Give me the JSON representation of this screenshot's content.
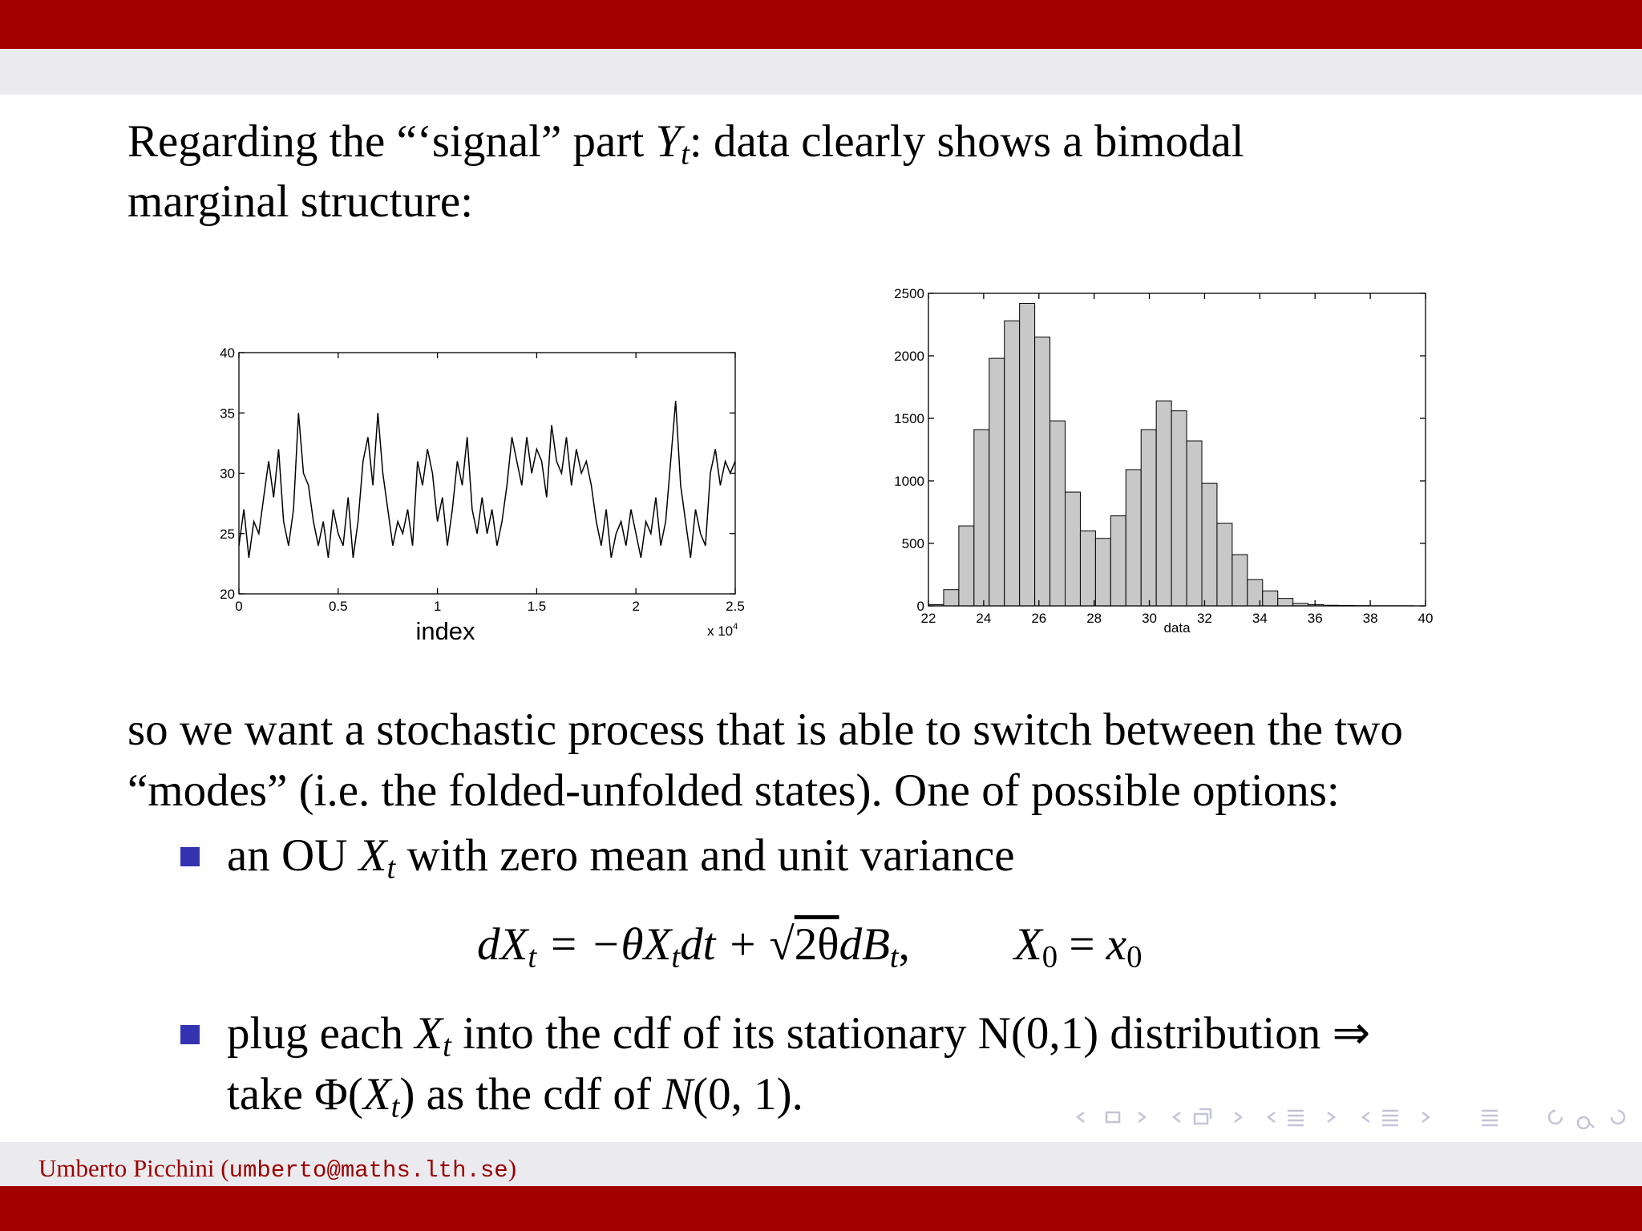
{
  "intro": {
    "line1": [
      "Regarding the “‘signal” part ",
      "Y",
      "t",
      ": data clearly shows a bimodal"
    ],
    "line2": "marginal structure:"
  },
  "body": {
    "line1": "so we want a stochastic process that is able to switch between the two",
    "line2": "“modes” (i.e. the folded-unfolded states). One of possible options:"
  },
  "bullet1": [
    "an OU ",
    "X",
    "t",
    " with zero mean and unit variance"
  ],
  "equation": [
    "dX",
    "t",
    " = −θX",
    "t",
    "dt + ",
    "√",
    "2θ",
    "dB",
    "t",
    ",",
    "X",
    "0",
    " = ",
    "x",
    "0"
  ],
  "bullet2": {
    "line1": [
      "plug each ",
      "X",
      "t",
      " into the cdf of its stationary N(0,1) distribution ⇒"
    ],
    "line2": [
      "take Φ(",
      "X",
      "t",
      ") as the cdf of ",
      "N",
      "(0, 1)."
    ]
  },
  "footer": [
    "Umberto Picchini (",
    "umberto@maths.lth.se",
    ")"
  ],
  "chart_data": [
    {
      "type": "line",
      "color": "#000000",
      "xlabel": "index",
      "x_multiplier": "x 10",
      "x_multiplier_exponent": "4",
      "x": [
        0,
        250,
        500,
        750,
        1000,
        1250,
        1500,
        1750,
        2000,
        2250,
        2500,
        2750,
        3000,
        3250,
        3500,
        3750,
        4000,
        4250,
        4500,
        4750,
        5000,
        5250,
        5500,
        5750,
        6000,
        6250,
        6500,
        6750,
        7000,
        7250,
        7500,
        7750,
        8000,
        8250,
        8500,
        8750,
        9000,
        9250,
        9500,
        9750,
        10000,
        10250,
        10500,
        10750,
        11000,
        11250,
        11500,
        11750,
        12000,
        12250,
        12500,
        12750,
        13000,
        13250,
        13500,
        13750,
        14000,
        14250,
        14500,
        14750,
        15000,
        15250,
        15500,
        15750,
        16000,
        16250,
        16500,
        16750,
        17000,
        17250,
        17500,
        17750,
        18000,
        18250,
        18500,
        18750,
        19000,
        19250,
        19500,
        19750,
        20000,
        20250,
        20500,
        20750,
        21000,
        21250,
        21500,
        21750,
        22000,
        22250,
        22500,
        22750,
        23000,
        23250,
        23500,
        23750,
        24000,
        24250,
        24500,
        24750,
        25000
      ],
      "values": [
        24,
        27,
        23,
        26,
        25,
        28,
        31,
        28,
        32,
        26,
        24,
        27,
        35,
        30,
        29,
        26,
        24,
        26,
        23,
        27,
        25,
        24,
        28,
        23,
        26,
        31,
        33,
        29,
        35,
        30,
        27,
        24,
        26,
        25,
        27,
        24,
        31,
        29,
        32,
        30,
        26,
        28,
        24,
        27,
        31,
        29,
        33,
        27,
        25,
        28,
        25,
        27,
        24,
        26,
        29,
        33,
        31,
        29,
        33,
        30,
        32,
        31,
        28,
        34,
        31,
        30,
        33,
        29,
        32,
        30,
        31,
        29,
        26,
        24,
        27,
        23,
        25,
        26,
        24,
        27,
        25,
        23,
        26,
        25,
        28,
        24,
        26,
        31,
        36,
        29,
        26,
        23,
        27,
        25,
        24,
        30,
        32,
        29,
        31,
        30,
        31
      ],
      "xlim": [
        0,
        25000
      ],
      "ylim": [
        20,
        40
      ],
      "xticks": [
        0,
        {
          "value": 5000,
          "label": "0.5"
        },
        {
          "value": 10000,
          "label": "1"
        },
        {
          "value": 15000,
          "label": "1.5"
        },
        {
          "value": 20000,
          "label": "2"
        },
        {
          "value": 25000,
          "label": "2.5"
        }
      ],
      "yticks": [
        20,
        25,
        30,
        35,
        40
      ]
    },
    {
      "type": "histogram",
      "color": "#c8c8c8",
      "xlabel": "data",
      "bins": [
        22,
        22.55,
        23.1,
        23.65,
        24.2,
        24.75,
        25.3,
        25.85,
        26.4,
        26.95,
        27.5,
        28.05,
        28.6,
        29.15,
        29.7,
        30.25,
        30.8,
        31.35,
        31.9,
        32.45,
        33,
        33.55,
        34.1,
        34.65,
        35.2,
        35.75,
        36.3,
        36.85,
        37.4,
        37.95,
        38.5,
        39.05,
        39.6
      ],
      "values": [
        10,
        130,
        640,
        1410,
        1980,
        2280,
        2420,
        2150,
        1480,
        910,
        600,
        540,
        720,
        1090,
        1410,
        1640,
        1560,
        1320,
        980,
        660,
        410,
        210,
        120,
        60,
        20,
        10,
        5,
        3,
        2,
        1,
        1,
        1
      ],
      "xlim": [
        22,
        40
      ],
      "ylim": [
        0,
        2500
      ],
      "xticks": [
        22,
        24,
        26,
        28,
        30,
        32,
        34,
        36,
        38,
        40
      ],
      "yticks": [
        0,
        500,
        1000,
        1500,
        2000,
        2500
      ]
    }
  ]
}
